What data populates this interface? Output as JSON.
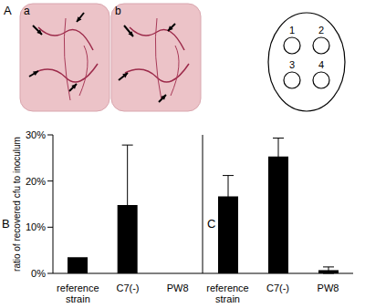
{
  "figure": {
    "panel_label": "A",
    "image_labels": [
      "a",
      "b"
    ],
    "diagram_labels": [
      "1",
      "2",
      "3",
      "4"
    ]
  },
  "chart_data": [
    {
      "type": "bar",
      "title": "B",
      "y_label": "ratio of recovered cfu to inoculum",
      "categories": [
        "reference strain",
        "C7(-)",
        "PW8"
      ],
      "values": [
        3.5,
        14.8,
        0
      ],
      "errors": [
        null,
        13,
        null
      ],
      "color": "#000000",
      "ylim": [
        0,
        30
      ],
      "yticks": [
        {
          "value": 0,
          "label": "0%"
        },
        {
          "value": 10,
          "label": "10%"
        },
        {
          "value": 20,
          "label": "20%"
        },
        {
          "value": 30,
          "label": "30%"
        }
      ]
    },
    {
      "type": "bar",
      "title": "C",
      "categories": [
        "reference strain",
        "C7(-)",
        "PW8"
      ],
      "values": [
        16.7,
        25.3,
        0.7
      ],
      "errors": [
        4.5,
        4,
        0.7
      ],
      "color": "#000000",
      "ylim": [
        0,
        30
      ],
      "yticks": [
        {
          "value": 0,
          "label": "0%"
        },
        {
          "value": 10,
          "label": "10%"
        },
        {
          "value": 20,
          "label": "20%"
        },
        {
          "value": 30,
          "label": "30%"
        }
      ],
      "tick_labels": "x"
    }
  ]
}
